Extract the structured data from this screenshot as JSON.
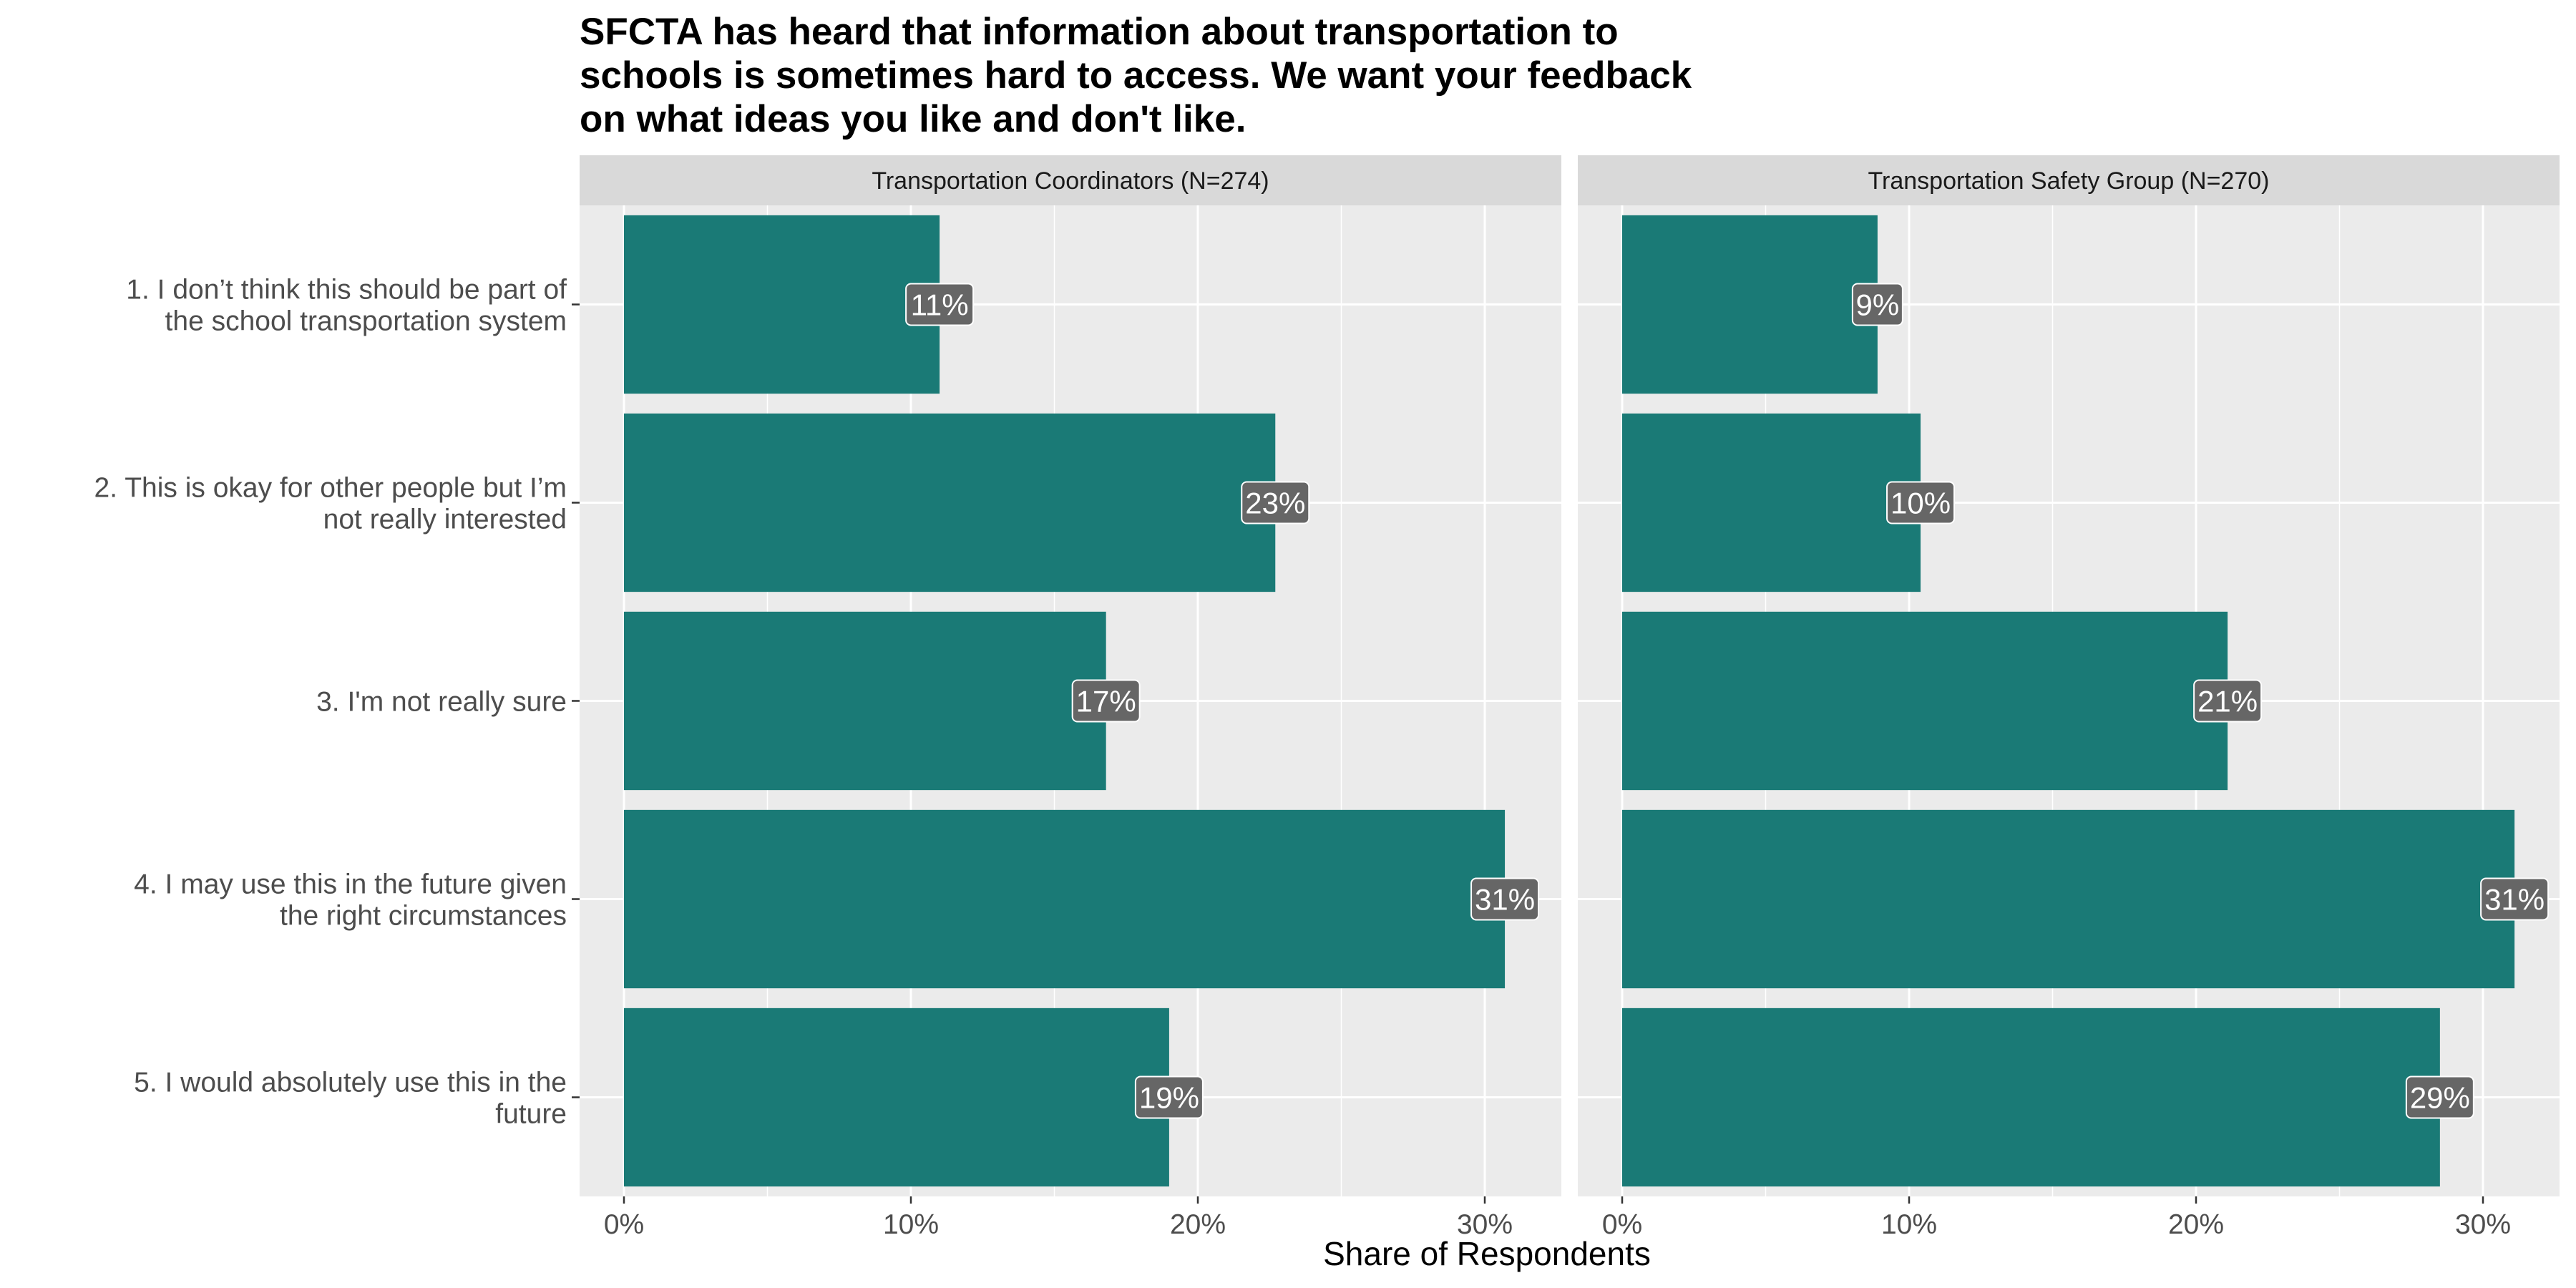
{
  "chart_data": {
    "type": "bar",
    "orientation": "horizontal",
    "title": "SFCTA has heard that information about transportation to schools is sometimes hard to access. We want your feedback on what ideas you like and don't like.",
    "title_lines": [
      "SFCTA has heard that information about transportation to",
      "schools is sometimes hard to access. We want your feedback",
      "on what ideas you like and don't like."
    ],
    "xlabel": "Share of Respondents",
    "ylabel": "",
    "xlim": [
      0,
      0.33
    ],
    "x_ticks": [
      0,
      0.1,
      0.2,
      0.3
    ],
    "x_tick_labels": [
      "0%",
      "10%",
      "20%",
      "30%"
    ],
    "grid": true,
    "categories": [
      [
        "1. I don’t think this should be part of",
        "the school transportation system"
      ],
      [
        "2. This is okay for other people but I’m",
        "not really interested"
      ],
      [
        "3. I'm not really sure"
      ],
      [
        "4. I may use this in the future given",
        "the right circumstances"
      ],
      [
        "5. I would absolutely use this in the",
        "future"
      ]
    ],
    "bar_color": "#1a7a76",
    "panel_background": "#ebebeb",
    "strip_background": "#d9d9d9",
    "label_background": "#666666",
    "panels": [
      {
        "title": "Transportation Coordinators (N=274)",
        "values": [
          0.11,
          0.227,
          0.168,
          0.307,
          0.19
        ],
        "labels": [
          "11%",
          "23%",
          "17%",
          "31%",
          "19%"
        ]
      },
      {
        "title": "Transportation Safety Group (N=270)",
        "values": [
          0.089,
          0.104,
          0.211,
          0.311,
          0.285
        ],
        "labels": [
          "9%",
          "10%",
          "21%",
          "31%",
          "29%"
        ]
      }
    ]
  }
}
